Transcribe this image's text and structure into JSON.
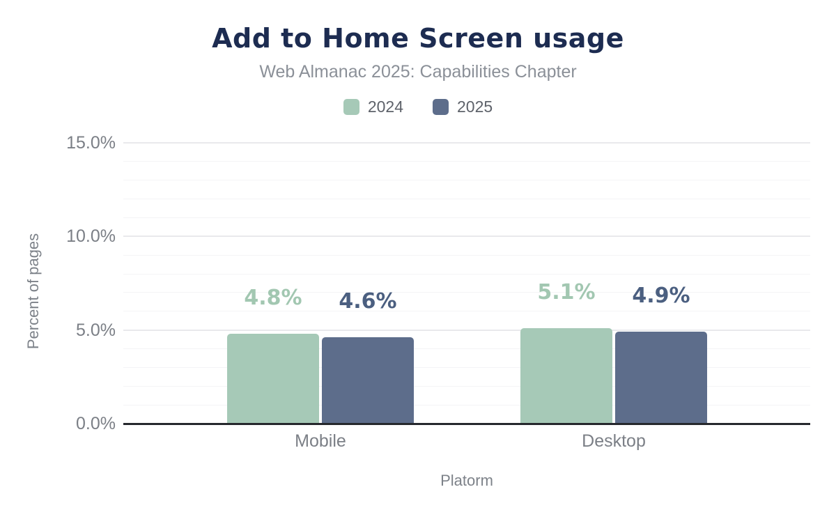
{
  "chart_data": {
    "type": "bar",
    "title": "Add to Home Screen usage",
    "subtitle": "Web Almanac 2025: Capabilities Chapter",
    "categories": [
      "Mobile",
      "Desktop"
    ],
    "series": [
      {
        "name": "2024",
        "values": [
          4.8,
          5.1
        ],
        "labels": [
          "4.8%",
          "5.1%"
        ],
        "color": "#a6c9b7",
        "label_color": "#a2c7b1"
      },
      {
        "name": "2025",
        "values": [
          4.6,
          4.9
        ],
        "labels": [
          "4.6%",
          "4.9%"
        ],
        "color": "#5d6d8b",
        "label_color": "#4b5f80"
      }
    ],
    "xlabel": "Platorm",
    "ylabel": "Percent of pages",
    "ylim": [
      0,
      15
    ],
    "yticks": [
      {
        "value": 0,
        "label": "0.0%"
      },
      {
        "value": 5,
        "label": "5.0%"
      },
      {
        "value": 10,
        "label": "10.0%"
      },
      {
        "value": 15,
        "label": "15.0%"
      }
    ],
    "minor_grid_step": 1,
    "major_grid_step": 5,
    "grid": true,
    "legend_position": "top",
    "colors": {
      "title": "#1d2c51",
      "subtitle": "#8b9098",
      "legend_text": "#5e626a",
      "tick_text": "#7b7f86",
      "axis_title_text": "#7d8289",
      "axis_line": "#26282d",
      "grid_major": "#e9e9ec",
      "grid_minor": "#f4f4f6",
      "background": "#ffffff"
    }
  }
}
